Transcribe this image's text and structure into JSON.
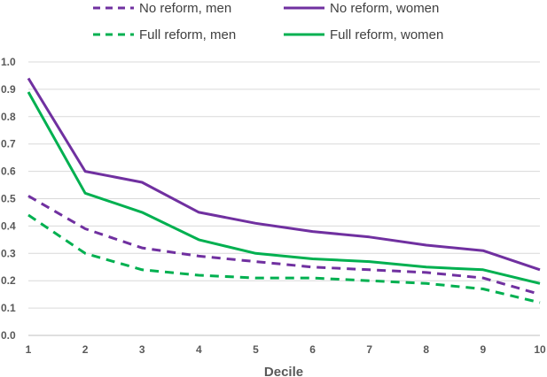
{
  "colors": {
    "purple": "#7030a0",
    "green": "#00b050",
    "grid": "#d9d9d9",
    "text": "#595959"
  },
  "chart_data": {
    "type": "line",
    "title": "",
    "xlabel": "Decile",
    "ylabel": "",
    "x": [
      1,
      2,
      3,
      4,
      5,
      6,
      7,
      8,
      9,
      10
    ],
    "xlim": [
      1,
      10
    ],
    "ylim": [
      0,
      1.0
    ],
    "yticks": [
      "0.0",
      "0.1",
      "0.2",
      "0.3",
      "0.4",
      "0.5",
      "0.6",
      "0.7",
      "0.8",
      "0.9",
      "1.0"
    ],
    "xticks": [
      "1",
      "2",
      "3",
      "4",
      "5",
      "6",
      "7",
      "8",
      "9",
      "10"
    ],
    "grid": "horizontal",
    "legend_position": "top",
    "series": [
      {
        "name": "No reform, men",
        "color": "#7030a0",
        "dash": true,
        "values": [
          0.51,
          0.39,
          0.32,
          0.29,
          0.27,
          0.25,
          0.24,
          0.23,
          0.21,
          0.15
        ]
      },
      {
        "name": "No reform, women",
        "color": "#7030a0",
        "dash": false,
        "values": [
          0.94,
          0.6,
          0.56,
          0.45,
          0.41,
          0.38,
          0.36,
          0.33,
          0.31,
          0.24
        ]
      },
      {
        "name": "Full reform, men",
        "color": "#00b050",
        "dash": true,
        "values": [
          0.44,
          0.3,
          0.24,
          0.22,
          0.21,
          0.21,
          0.2,
          0.19,
          0.17,
          0.12
        ]
      },
      {
        "name": "Full reform, women",
        "color": "#00b050",
        "dash": false,
        "values": [
          0.89,
          0.52,
          0.45,
          0.35,
          0.3,
          0.28,
          0.27,
          0.25,
          0.24,
          0.19
        ]
      }
    ]
  }
}
